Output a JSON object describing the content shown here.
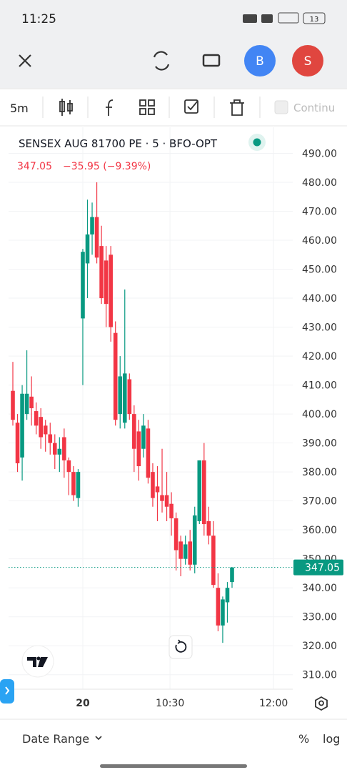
{
  "status_bar": {
    "time": "11:25",
    "battery": "13"
  },
  "top_bar": {
    "avatar_1": "B",
    "avatar_2": "S"
  },
  "toolbar": {
    "interval": "5m",
    "continue": "Continu"
  },
  "header": {
    "symbol": "SENSEX AUG 81700 PE · 5 · BFO-OPT",
    "change": "−35.95 (−9.39%)"
  },
  "bottom_bar": {
    "date_range": "Date Range",
    "percent": "%",
    "log": "log"
  },
  "chart_data": {
    "type": "candlestick",
    "up_color": "#089981",
    "down_color": "#f23645",
    "open": [
      408,
      397,
      385,
      400,
      406,
      401,
      399,
      396,
      393,
      390,
      386,
      392,
      384,
      380,
      371,
      433,
      452,
      462,
      468,
      458,
      453,
      455,
      428,
      400,
      397,
      412,
      400,
      394,
      388,
      395,
      380,
      375,
      372,
      372,
      369,
      364,
      356,
      350,
      356,
      348,
      363,
      384,
      363,
      358,
      340,
      327,
      335,
      342
    ],
    "high": [
      418,
      400,
      410,
      422,
      413,
      404,
      402,
      398,
      397,
      393,
      392,
      395,
      385,
      382,
      381,
      457,
      474,
      473,
      480,
      465,
      458,
      458,
      432,
      420,
      443,
      414,
      403,
      398,
      400,
      398,
      383,
      382,
      388,
      380,
      373,
      366,
      358,
      358,
      360,
      368,
      384,
      390,
      368,
      363,
      345,
      337,
      342,
      347
    ],
    "low": [
      396,
      380,
      377,
      398,
      396,
      393,
      388,
      387,
      386,
      381,
      380,
      378,
      372,
      370,
      368,
      410,
      440,
      455,
      452,
      438,
      430,
      425,
      396,
      395,
      395,
      398,
      380,
      377,
      385,
      376,
      368,
      363,
      366,
      363,
      358,
      346,
      344,
      348,
      346,
      345,
      362,
      358,
      355,
      340,
      325,
      321,
      328,
      340
    ],
    "close": [
      398,
      383,
      407,
      407,
      402,
      396,
      392,
      393,
      390,
      386,
      388,
      384,
      380,
      372,
      380,
      456,
      462,
      468,
      454,
      440,
      438,
      430,
      398,
      413,
      414,
      400,
      388,
      382,
      396,
      378,
      371,
      373,
      370,
      368,
      364,
      353,
      350,
      355,
      348,
      365,
      384,
      362,
      358,
      341,
      327,
      336,
      340,
      347.05
    ],
    "last_value": 347.05,
    "ylim": [
      305,
      499
    ],
    "yticks": [
      {
        "value": 310,
        "label": "310.00"
      },
      {
        "value": 320,
        "label": "320.00"
      },
      {
        "value": 330,
        "label": "330.00"
      },
      {
        "value": 340,
        "label": "340.00"
      },
      {
        "value": 350,
        "label": "350.00"
      },
      {
        "value": 360,
        "label": "360.00"
      },
      {
        "value": 370,
        "label": "370.00"
      },
      {
        "value": 380,
        "label": "380.00"
      },
      {
        "value": 390,
        "label": "390.00"
      },
      {
        "value": 400,
        "label": "400.00"
      },
      {
        "value": 410,
        "label": "410.00"
      },
      {
        "value": 420,
        "label": "420.00"
      },
      {
        "value": 430,
        "label": "430.00"
      },
      {
        "value": 440,
        "label": "440.00"
      },
      {
        "value": 450,
        "label": "450.00"
      },
      {
        "value": 460,
        "label": "460.00"
      },
      {
        "value": 470,
        "label": "470.00"
      },
      {
        "value": 480,
        "label": "480.00"
      },
      {
        "value": 490,
        "label": "490.00"
      }
    ],
    "xticks": [
      {
        "value": 15,
        "label": "20"
      },
      {
        "value": 33.7,
        "label": "10:30"
      },
      {
        "value": 55.9,
        "label": "12:00"
      }
    ]
  }
}
